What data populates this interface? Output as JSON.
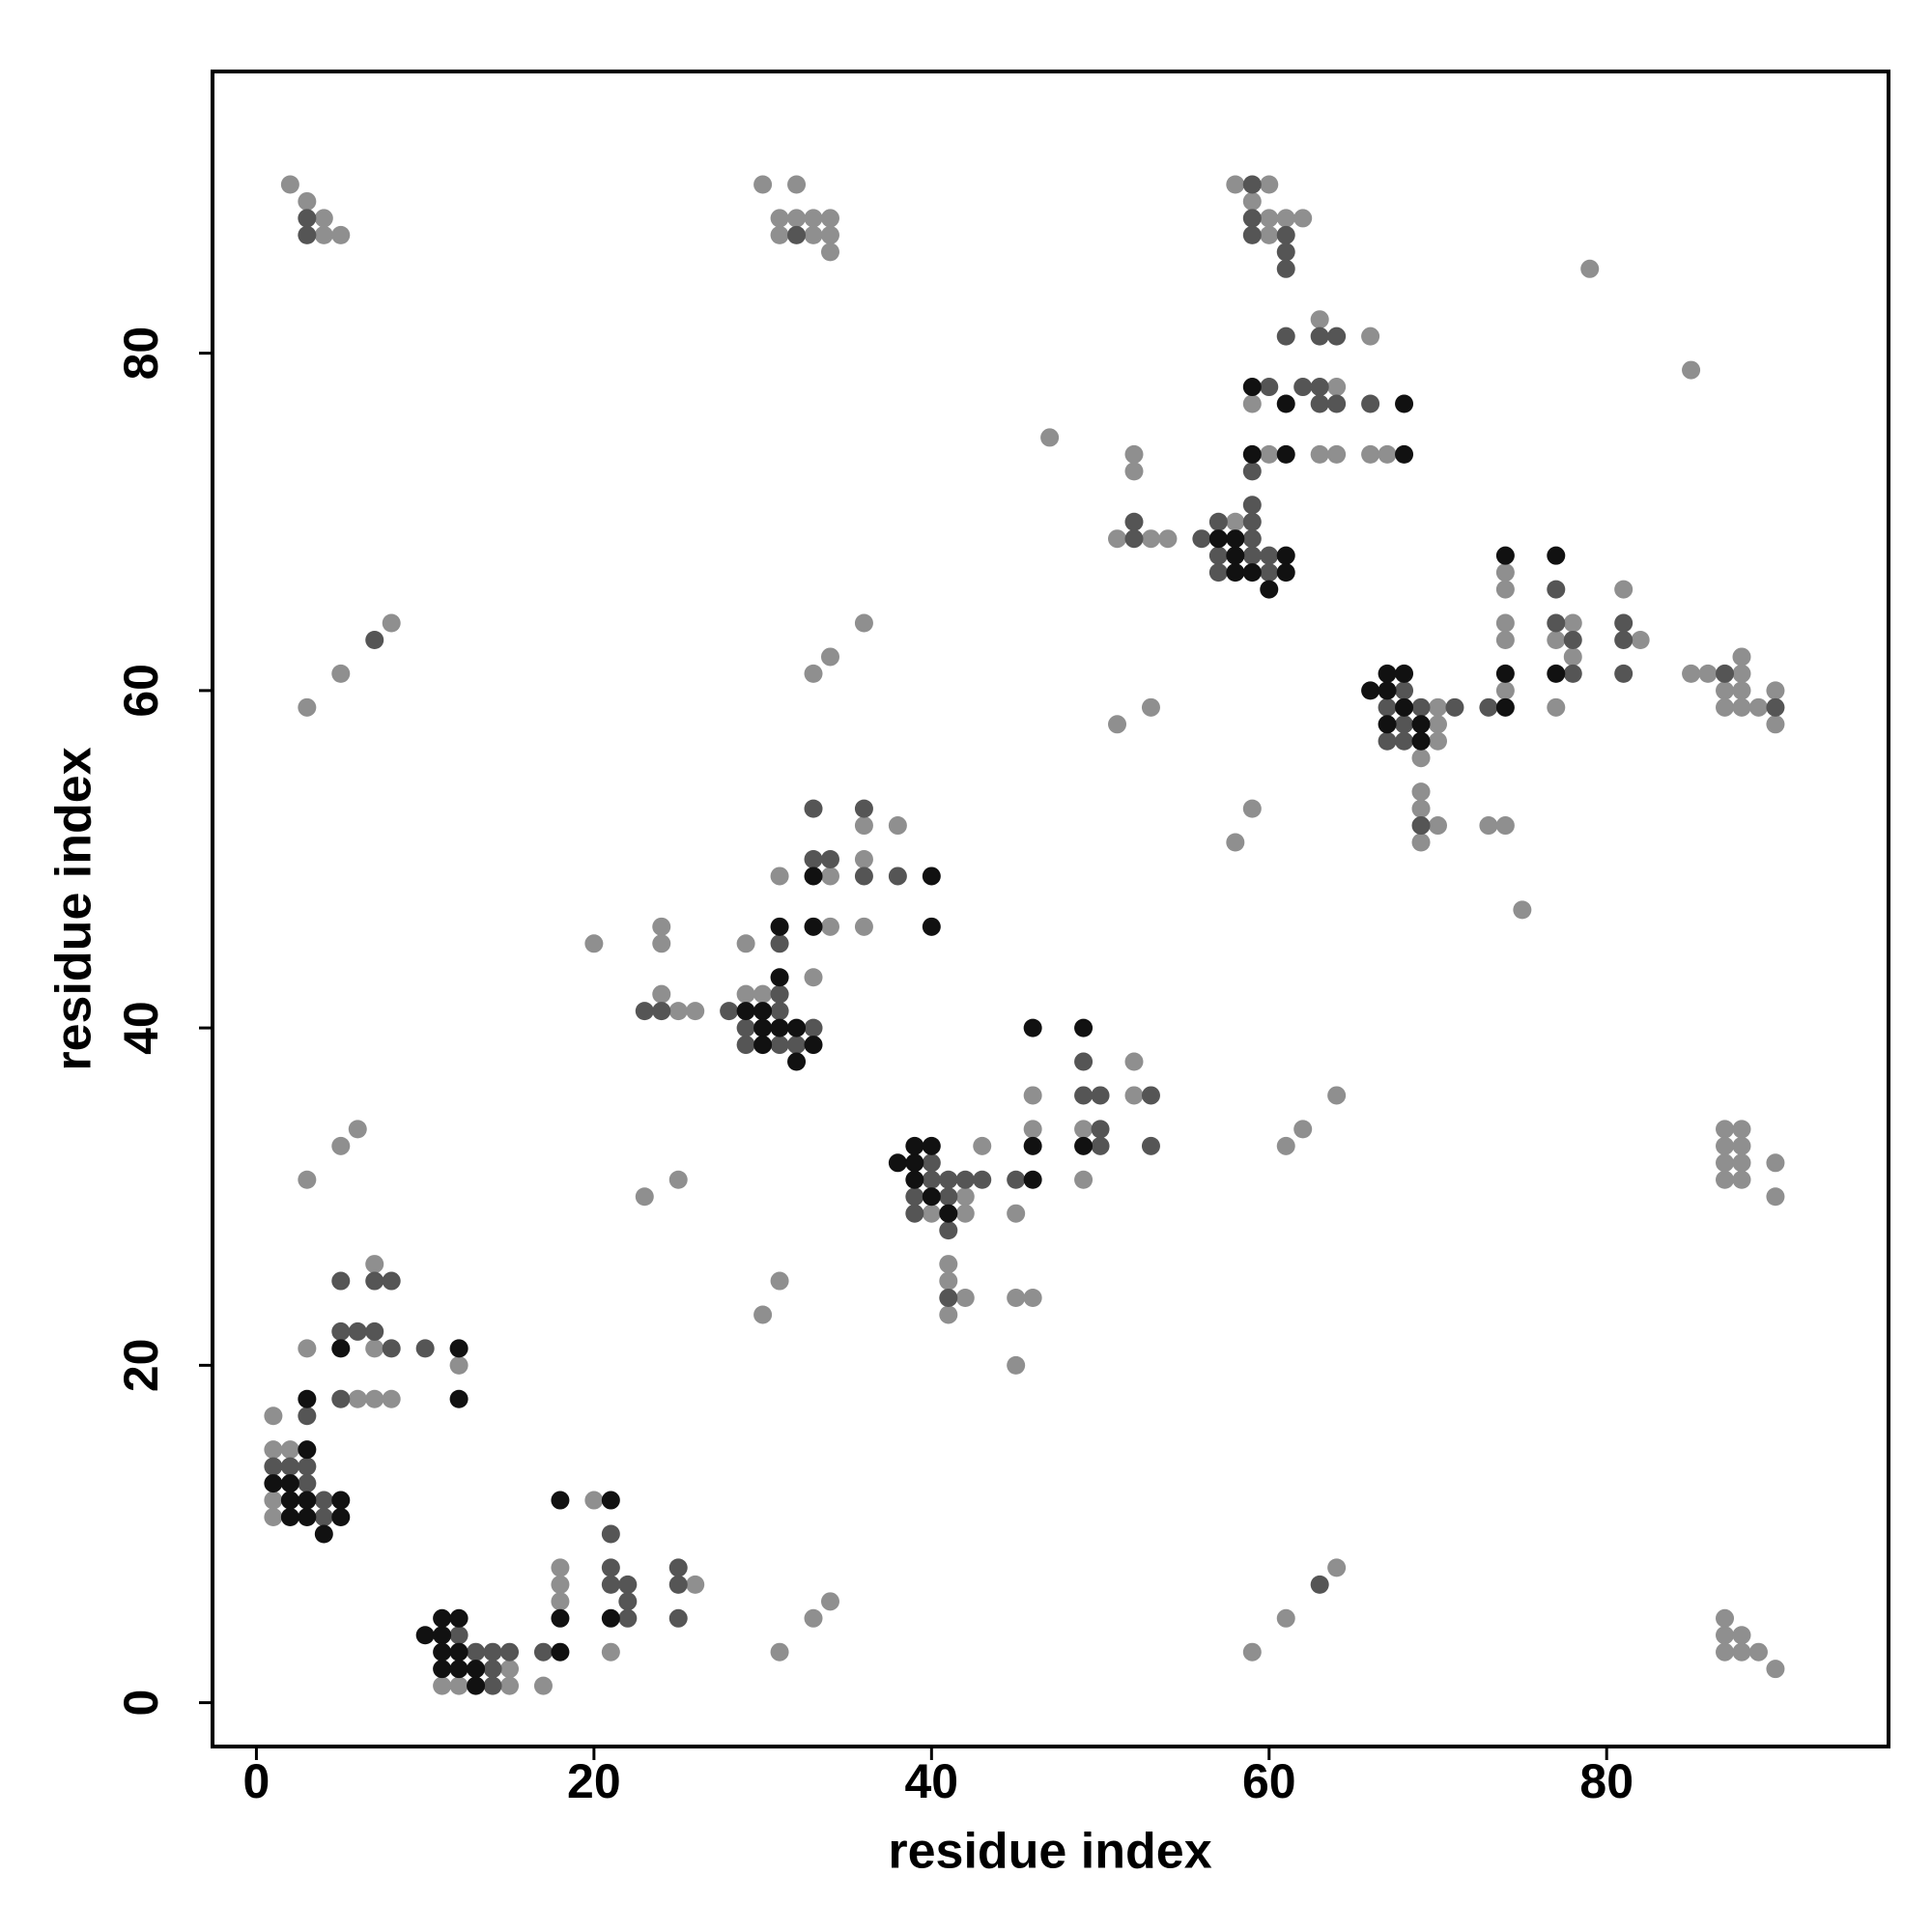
{
  "chart_data": {
    "type": "scatter",
    "x_label": "residue index",
    "y_label": "residue index",
    "xlim": [
      -2.6,
      96.7
    ],
    "ylim": [
      -2.6,
      96.7
    ],
    "xticks": [
      0,
      20,
      40,
      60,
      80
    ],
    "yticks": [
      0,
      20,
      40,
      60,
      80
    ],
    "grid": false,
    "series": [
      {
        "color": "#8f8f8f",
        "x": [
          2,
          3,
          4,
          4,
          5,
          30,
          32,
          31,
          32,
          33,
          34,
          31,
          33,
          34,
          34,
          58,
          60,
          59,
          60,
          61,
          62,
          60,
          79,
          85,
          63,
          66,
          64,
          59,
          47,
          60,
          63,
          64,
          66,
          67,
          52,
          52,
          58,
          51,
          53,
          54,
          74,
          74,
          81,
          74,
          78,
          74,
          77,
          82,
          78,
          88,
          85,
          86,
          88,
          74,
          87,
          88,
          90,
          70,
          77,
          87,
          88,
          89,
          70,
          90,
          70,
          69,
          69,
          69,
          59,
          70,
          73,
          74,
          69,
          58,
          75,
          8,
          36,
          34,
          5,
          33,
          3,
          53,
          51,
          36,
          38,
          36,
          31,
          34,
          24,
          34,
          36,
          20,
          24,
          29,
          33,
          24,
          29,
          30,
          25,
          26,
          52,
          46,
          52,
          64,
          46,
          49,
          6,
          87,
          88,
          62,
          5,
          43,
          61,
          87,
          88,
          87,
          88,
          90,
          49,
          3,
          25,
          87,
          88,
          42,
          23,
          90,
          40,
          42,
          45,
          41,
          41,
          31,
          42,
          45,
          46,
          41,
          30,
          45,
          7,
          3,
          7,
          12,
          6,
          7,
          8,
          1,
          1,
          2,
          1,
          1,
          20,
          18,
          64,
          18,
          26,
          18,
          34,
          33,
          61,
          87,
          87,
          88,
          21,
          31,
          59,
          87,
          88,
          89,
          15,
          90,
          11,
          12,
          15,
          17
        ],
        "y": [
          90,
          89,
          88,
          87,
          87,
          90,
          90,
          88,
          88,
          88,
          88,
          87,
          87,
          87,
          86,
          90,
          90,
          89,
          88,
          88,
          88,
          87,
          85,
          79,
          82,
          81,
          78,
          77,
          75,
          74,
          74,
          74,
          74,
          74,
          74,
          73,
          70,
          69,
          69,
          69,
          67,
          66,
          66,
          64,
          64,
          63,
          63,
          63,
          62,
          62,
          61,
          61,
          61,
          60,
          60,
          60,
          60,
          59,
          59,
          59,
          59,
          59,
          58,
          58,
          57,
          56,
          54,
          53,
          53,
          52,
          52,
          52,
          51,
          51,
          47,
          64,
          64,
          62,
          61,
          61,
          59,
          59,
          58,
          52,
          52,
          50,
          49,
          49,
          46,
          46,
          46,
          45,
          45,
          45,
          43,
          42,
          42,
          42,
          41,
          41,
          38,
          36,
          36,
          36,
          34,
          34,
          34,
          34,
          34,
          34,
          33,
          33,
          33,
          33,
          33,
          32,
          32,
          32,
          31,
          31,
          31,
          31,
          31,
          30,
          30,
          30,
          29,
          29,
          29,
          26,
          25,
          25,
          24,
          24,
          24,
          23,
          23,
          20,
          26,
          21,
          21,
          20,
          18,
          18,
          18,
          17,
          15,
          15,
          12,
          11,
          12,
          8,
          8,
          7,
          7,
          6,
          6,
          5,
          5,
          5,
          4,
          4,
          3,
          3,
          3,
          3,
          3,
          3,
          2,
          2,
          1,
          1,
          1,
          1
        ]
      },
      {
        "color": "#555555",
        "x": [
          3,
          3,
          32,
          59,
          59,
          59,
          61,
          61,
          61,
          61,
          63,
          64,
          60,
          62,
          63,
          63,
          64,
          66,
          59,
          59,
          52,
          57,
          59,
          52,
          56,
          59,
          57,
          59,
          60,
          57,
          60,
          77,
          77,
          81,
          78,
          81,
          78,
          81,
          87,
          68,
          67,
          69,
          71,
          73,
          90,
          68,
          67,
          68,
          69,
          7,
          33,
          36,
          33,
          34,
          36,
          38,
          31,
          31,
          23,
          24,
          28,
          31,
          29,
          33,
          29,
          31,
          32,
          49,
          49,
          50,
          53,
          50,
          50,
          53,
          40,
          40,
          41,
          42,
          43,
          45,
          39,
          41,
          39,
          41,
          41,
          5,
          7,
          8,
          5,
          6,
          7,
          8,
          10,
          5,
          3,
          1,
          2,
          3,
          3,
          4,
          4,
          21,
          21,
          25,
          21,
          22,
          25,
          63,
          22,
          22,
          25,
          12,
          13,
          14,
          15,
          17,
          14,
          14
        ],
        "y": [
          88,
          87,
          87,
          90,
          88,
          87,
          87,
          86,
          85,
          81,
          81,
          81,
          78,
          78,
          78,
          77,
          77,
          77,
          73,
          71,
          70,
          70,
          70,
          69,
          69,
          69,
          68,
          68,
          68,
          67,
          67,
          66,
          64,
          64,
          63,
          63,
          61,
          61,
          61,
          60,
          59,
          59,
          59,
          59,
          59,
          58,
          57,
          57,
          52,
          63,
          53,
          53,
          50,
          50,
          49,
          49,
          45,
          42,
          41,
          41,
          41,
          41,
          40,
          40,
          39,
          39,
          39,
          38,
          36,
          36,
          36,
          34,
          33,
          33,
          32,
          31,
          31,
          31,
          31,
          31,
          30,
          30,
          29,
          28,
          24,
          25,
          25,
          25,
          22,
          22,
          22,
          21,
          21,
          18,
          17,
          14,
          14,
          14,
          13,
          12,
          11,
          10,
          8,
          8,
          7,
          7,
          7,
          7,
          6,
          5,
          5,
          4,
          3,
          3,
          3,
          3,
          2,
          1
        ]
      },
      {
        "color": "#111111",
        "x": [
          59,
          61,
          68,
          59,
          61,
          68,
          57,
          58,
          58,
          61,
          58,
          59,
          61,
          60,
          74,
          77,
          74,
          77,
          66,
          67,
          67,
          68,
          68,
          74,
          67,
          69,
          69,
          33,
          40,
          31,
          33,
          40,
          31,
          29,
          30,
          30,
          31,
          32,
          30,
          33,
          32,
          46,
          49,
          46,
          49,
          38,
          39,
          39,
          40,
          39,
          46,
          40,
          41,
          5,
          12,
          3,
          12,
          3,
          1,
          2,
          2,
          3,
          5,
          2,
          3,
          5,
          4,
          18,
          21,
          18,
          21,
          10,
          11,
          11,
          12,
          11,
          12,
          18,
          11,
          12,
          13,
          13
        ],
        "y": [
          78,
          77,
          77,
          74,
          74,
          74,
          69,
          69,
          68,
          68,
          67,
          67,
          67,
          66,
          68,
          68,
          61,
          61,
          60,
          60,
          61,
          61,
          59,
          59,
          58,
          58,
          57,
          49,
          49,
          46,
          46,
          46,
          43,
          41,
          41,
          40,
          40,
          40,
          39,
          39,
          38,
          40,
          40,
          33,
          33,
          32,
          32,
          33,
          33,
          31,
          31,
          30,
          29,
          21,
          21,
          18,
          18,
          15,
          13,
          13,
          12,
          12,
          12,
          11,
          11,
          11,
          10,
          12,
          12,
          5,
          5,
          4,
          4,
          5,
          5,
          3,
          3,
          3,
          2,
          2,
          2,
          1
        ]
      }
    ]
  }
}
